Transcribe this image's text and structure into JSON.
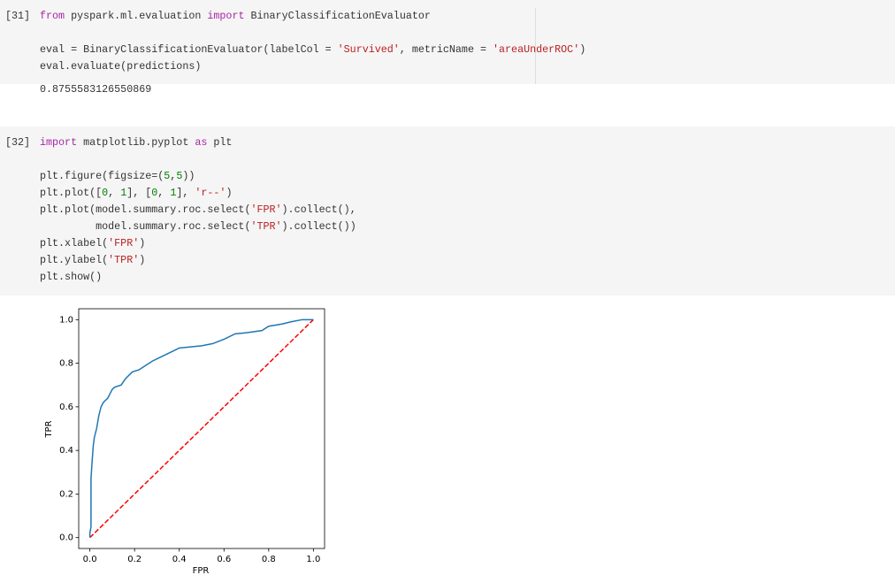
{
  "cells": [
    {
      "prompt": "[31]",
      "lines": [
        [
          {
            "t": "from",
            "k": "kw"
          },
          {
            "t": " pyspark.ml.evaluation "
          },
          {
            "t": "import",
            "k": "kw"
          },
          {
            "t": " BinaryClassificationEvaluator"
          }
        ],
        [],
        [
          {
            "t": "eval = BinaryClassificationEvaluator(labelCol = "
          },
          {
            "t": "'Survived'",
            "k": "str"
          },
          {
            "t": ", metricName = "
          },
          {
            "t": "'areaUnderROC'",
            "k": "str"
          },
          {
            "t": ")"
          }
        ],
        [
          {
            "t": "eval.evaluate(predictions)"
          }
        ]
      ],
      "output": "0.8755583126550869"
    },
    {
      "prompt": "[32]",
      "lines": [
        [
          {
            "t": "import",
            "k": "kw"
          },
          {
            "t": " matplotlib.pyplot "
          },
          {
            "t": "as",
            "k": "kw"
          },
          {
            "t": " plt"
          }
        ],
        [],
        [
          {
            "t": "plt.figure(figsize=("
          },
          {
            "t": "5",
            "k": "num"
          },
          {
            "t": ","
          },
          {
            "t": "5",
            "k": "num"
          },
          {
            "t": "))"
          }
        ],
        [
          {
            "t": "plt.plot(["
          },
          {
            "t": "0",
            "k": "num"
          },
          {
            "t": ", "
          },
          {
            "t": "1",
            "k": "num"
          },
          {
            "t": "], ["
          },
          {
            "t": "0",
            "k": "num"
          },
          {
            "t": ", "
          },
          {
            "t": "1",
            "k": "num"
          },
          {
            "t": "], "
          },
          {
            "t": "'r--'",
            "k": "str"
          },
          {
            "t": ")"
          }
        ],
        [
          {
            "t": "plt.plot(model.summary.roc.select("
          },
          {
            "t": "'FPR'",
            "k": "str"
          },
          {
            "t": ").collect(),"
          }
        ],
        [
          {
            "t": "         model.summary.roc.select("
          },
          {
            "t": "'TPR'",
            "k": "str"
          },
          {
            "t": ").collect())"
          }
        ],
        [
          {
            "t": "plt.xlabel("
          },
          {
            "t": "'FPR'",
            "k": "str"
          },
          {
            "t": ")"
          }
        ],
        [
          {
            "t": "plt.ylabel("
          },
          {
            "t": "'TPR'",
            "k": "str"
          },
          {
            "t": ")"
          }
        ],
        [
          {
            "t": "plt.show()"
          }
        ]
      ]
    }
  ],
  "chart_data": {
    "type": "line",
    "x_label": "FPR",
    "y_label": "TPR",
    "xlim": [
      -0.05,
      1.05
    ],
    "ylim": [
      -0.05,
      1.05
    ],
    "xticks": [
      {
        "value": 0,
        "label": "0.0"
      },
      0.2,
      0.4,
      0.6,
      0.8,
      {
        "value": 1,
        "label": "1.0"
      }
    ],
    "yticks": [
      {
        "value": 0,
        "label": "0.0"
      },
      0.2,
      0.4,
      0.6,
      0.8,
      {
        "value": 1,
        "label": "1.0"
      }
    ],
    "series": [
      {
        "color": "#ff0000",
        "dashed": true,
        "x": [
          0,
          1
        ],
        "values": [
          0,
          1
        ]
      },
      {
        "color": "#1f77b4",
        "dashed": false,
        "x": [
          0,
          0,
          0.005,
          0.005,
          0.01,
          0.015,
          0.02,
          0.03,
          0.04,
          0.05,
          0.06,
          0.08,
          0.09,
          0.1,
          0.11,
          0.14,
          0.16,
          0.19,
          0.22,
          0.25,
          0.28,
          0.32,
          0.36,
          0.4,
          0.45,
          0.5,
          0.55,
          0.6,
          0.65,
          0.7,
          0.77,
          0.8,
          0.86,
          0.9,
          0.95,
          1
        ],
        "values": [
          0,
          0.02,
          0.05,
          0.27,
          0.35,
          0.42,
          0.46,
          0.5,
          0.56,
          0.6,
          0.62,
          0.64,
          0.66,
          0.68,
          0.69,
          0.7,
          0.73,
          0.76,
          0.77,
          0.79,
          0.81,
          0.83,
          0.85,
          0.87,
          0.875,
          0.88,
          0.89,
          0.91,
          0.935,
          0.94,
          0.95,
          0.97,
          0.98,
          0.99,
          1,
          1
        ]
      }
    ]
  }
}
